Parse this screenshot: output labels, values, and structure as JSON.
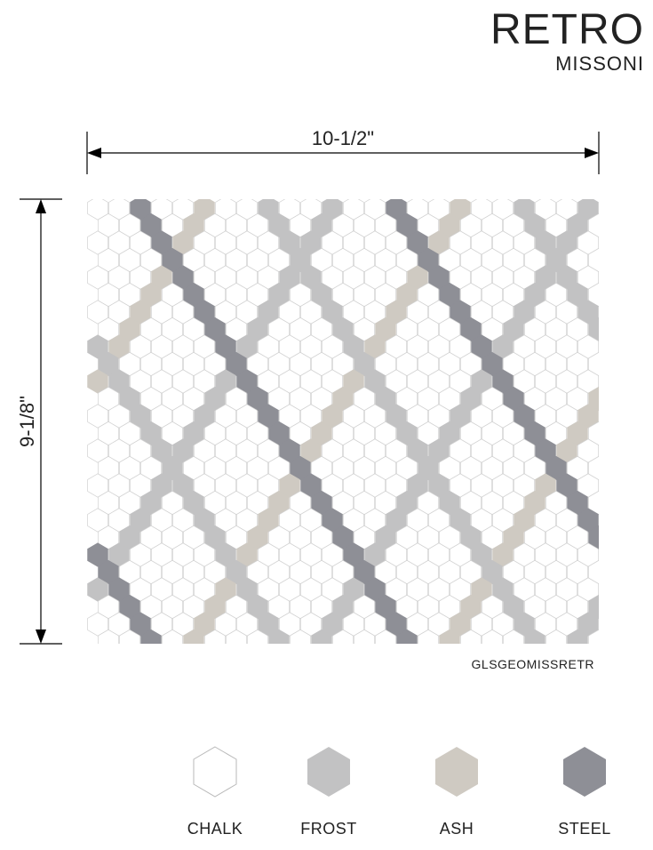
{
  "brand": {
    "title": "RETRO",
    "subtitle": "MISSONI"
  },
  "dimensions": {
    "width": "10-1/2\"",
    "height": "9-1/8\""
  },
  "product_code": "GLSGEOMISSRETR",
  "colors": [
    {
      "name": "CHALK",
      "hex": "#ffffff"
    },
    {
      "name": "FROST",
      "hex": "#c2c2c3"
    },
    {
      "name": "ASH",
      "hex": "#cfcac2"
    },
    {
      "name": "STEEL",
      "hex": "#8e8f96"
    }
  ]
}
